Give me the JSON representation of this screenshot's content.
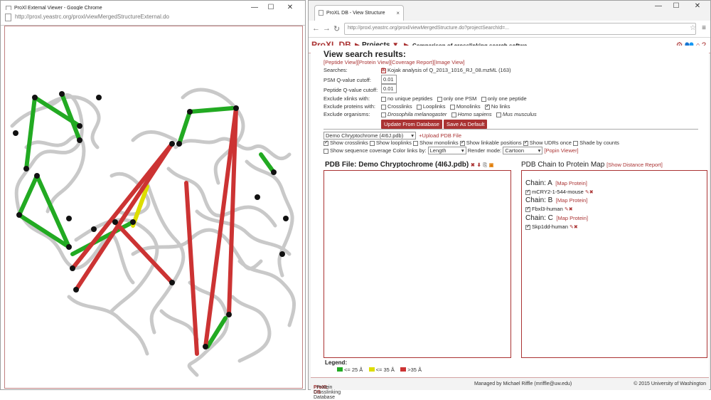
{
  "left_window": {
    "title": "ProXl External Viewer - Google Chrome",
    "url": "http://proxl.yeastrc.org/proxl/viewMergedStructureExternal.do",
    "controls": {
      "minimize": "—",
      "maximize": "☐",
      "close": "✕"
    }
  },
  "right_window": {
    "tab_title": "ProXL DB - View Structure",
    "tab_close": "×",
    "url": "http://proxl.yeastrc.org/proxl/viewMergedStructure.do?projectSearchId=...",
    "controls": {
      "minimize": "—",
      "maximize": "☐",
      "close": "✕"
    }
  },
  "header": {
    "logo": "ProXL DB",
    "projects_label": "Projects",
    "breadcrumb": "Comparison of crosslinking search softwa..."
  },
  "page": {
    "title": "View search results:",
    "views": [
      "[Peptide View]",
      "[Protein View]",
      "[Coverage Report]",
      "[Image View]"
    ],
    "searches_label": "Searches:",
    "search_name": "Kojak analysis of Q_2013_1016_RJ_08.mzML (163)",
    "psm_label": "PSM Q-value cutoff:",
    "psm_value": "0.01",
    "peptide_label": "Peptide Q-value cutoff:",
    "peptide_value": "0.01",
    "exclude_xlinks_label": "Exclude xlinks with:",
    "exclude_xlinks": [
      "no unique peptides",
      "only one PSM",
      "only one peptide"
    ],
    "exclude_proteins_label": "Exclude proteins with:",
    "exclude_proteins": [
      "Crosslinks",
      "Looplinks",
      "Monolinks",
      "No links"
    ],
    "exclude_organisms_label": "Exclude organisms:",
    "exclude_organisms": [
      "Drosophila melanogaster",
      "Homo sapiens",
      "Mus musculus"
    ],
    "update_button": "Update From Database",
    "save_button": "Save As Default"
  },
  "structure": {
    "pdb_select": "Demo Chryptochrome (4I6J.pdb)",
    "upload_link": "+Upload PDB File",
    "options": [
      "Show crosslinks",
      "Show looplinks",
      "Show monolinks",
      "Show linkable positions",
      "Show UDRs once",
      "Shade by counts"
    ],
    "coverage_label": "Show sequence coverage",
    "color_label": "Color links by:",
    "color_value": "Length",
    "render_label": "Render mode:",
    "render_value": "Cartoon",
    "popin": "[Popin Viewer]"
  },
  "pdb_panel": {
    "title": "PDB File: Demo Chryptochrome (4I6J.pdb)"
  },
  "chain_panel": {
    "title": "PDB Chain to Protein Map",
    "report_link": "[Show Distance Report]",
    "map_label": "[Map Protein]",
    "chains": [
      {
        "label": "Chain: A",
        "protein": "mCRY2-1-544-mouse"
      },
      {
        "label": "Chain: B",
        "protein": "Fbxl3-human"
      },
      {
        "label": "Chain: C",
        "protein": "Skp1dd-human"
      }
    ]
  },
  "legend": {
    "title": "Legend:",
    "items": [
      {
        "label": "<= 25 Å",
        "color": "#22aa22"
      },
      {
        "label": "<= 35 Å",
        "color": "#dddd00"
      },
      {
        "label": ">35 Å",
        "color": "#cc3333"
      }
    ]
  },
  "footer": {
    "left_brand": "ProXL DB",
    "left_text": " - Protein Crosslinking Database",
    "middle": "Managed by Michael Riffle (mriffle@uw.edu)",
    "right": "© 2015 University of Washington"
  },
  "colors": {
    "accent": "#a33333",
    "green": "#22aa22",
    "yellow": "#dddd00",
    "red": "#cc3333",
    "structure": "#c8c8c8"
  }
}
